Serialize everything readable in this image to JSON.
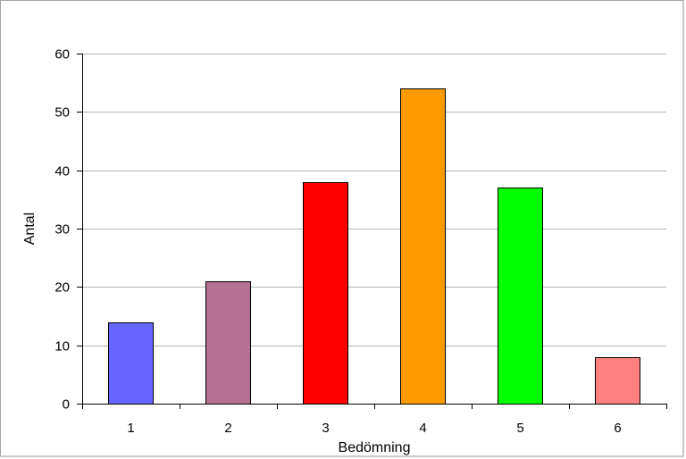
{
  "chart_data": {
    "type": "bar",
    "title": "",
    "xlabel": "Bedömning",
    "ylabel": "Antal",
    "categories": [
      "1",
      "2",
      "3",
      "4",
      "5",
      "6"
    ],
    "values": [
      14,
      21,
      38,
      54,
      37,
      8
    ],
    "bar_colors": [
      "#6666ff",
      "#b56f93",
      "#ff0000",
      "#ff9900",
      "#00ff00",
      "#ff8080"
    ],
    "ylim": [
      0,
      60
    ],
    "yticks": [
      0,
      10,
      20,
      30,
      40,
      50,
      60
    ],
    "grid": true,
    "legend": "none"
  }
}
